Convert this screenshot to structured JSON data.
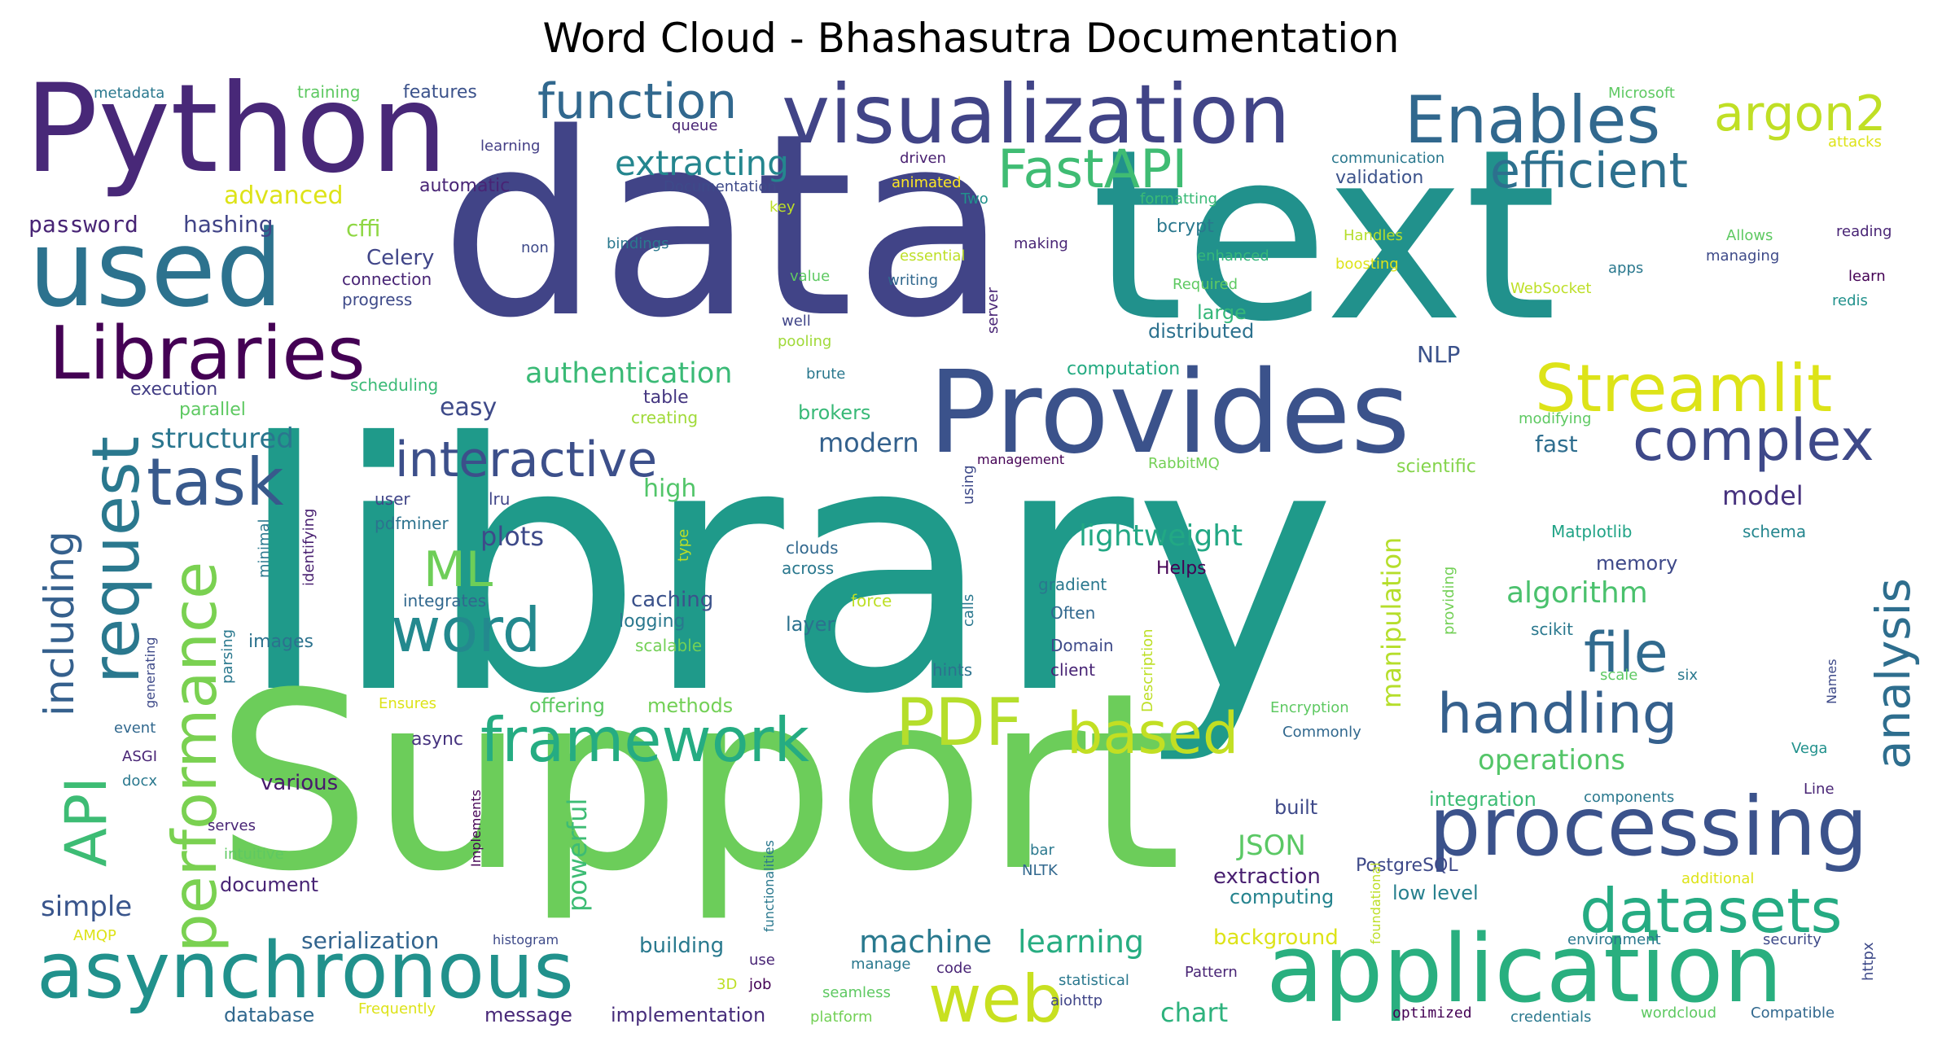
{
  "chart_data": {
    "type": "wordcloud",
    "title": "Word Cloud - Bhashasutra Documentation",
    "words": [
      {
        "text": "library",
        "weight": 100,
        "color": "#1f9a8a"
      },
      {
        "text": "Support",
        "weight": 92,
        "color": "#6ccd5a"
      },
      {
        "text": "data",
        "weight": 88,
        "color": "#414487"
      },
      {
        "text": "text",
        "weight": 86,
        "color": "#21918c"
      },
      {
        "text": "Python",
        "weight": 58,
        "color": "#482878"
      },
      {
        "text": "Provides",
        "weight": 50,
        "color": "#3b528b"
      },
      {
        "text": "used",
        "weight": 48,
        "color": "#2c728e"
      },
      {
        "text": "application",
        "weight": 44,
        "color": "#29af7f"
      },
      {
        "text": "processing",
        "weight": 40,
        "color": "#3b528b"
      },
      {
        "text": "visualization",
        "weight": 38,
        "color": "#414487"
      },
      {
        "text": "asynchronous",
        "weight": 36,
        "color": "#21918c"
      },
      {
        "text": "Libraries",
        "weight": 34,
        "color": "#440154"
      },
      {
        "text": "Enables",
        "weight": 32,
        "color": "#31688e"
      },
      {
        "text": "Streamlit",
        "weight": 31,
        "color": "#dde318"
      },
      {
        "text": "framework",
        "weight": 30,
        "color": "#25ac82"
      },
      {
        "text": "request",
        "weight": 30,
        "color": "#2a788e"
      },
      {
        "text": "PDF",
        "weight": 30,
        "color": "#b5de2b"
      },
      {
        "text": "web",
        "weight": 30,
        "color": "#c8e020"
      },
      {
        "text": "datasets",
        "weight": 29,
        "color": "#25ab82"
      },
      {
        "text": "performance",
        "weight": 29,
        "color": "#7ad151"
      },
      {
        "text": "complex",
        "weight": 28,
        "color": "#3e4989"
      },
      {
        "text": "handling",
        "weight": 27,
        "color": "#35608d"
      },
      {
        "text": "task",
        "weight": 26,
        "color": "#38598c"
      },
      {
        "text": "based",
        "weight": 26,
        "color": "#c2df23"
      },
      {
        "text": "word",
        "weight": 26,
        "color": "#23898e"
      },
      {
        "text": "file",
        "weight": 25,
        "color": "#306a8e"
      },
      {
        "text": "FastAPI",
        "weight": 24,
        "color": "#3fbc73"
      },
      {
        "text": "efficient",
        "weight": 24,
        "color": "#2d708e"
      },
      {
        "text": "argon2",
        "weight": 24,
        "color": "#c0df25"
      },
      {
        "text": "function",
        "weight": 24,
        "color": "#31688e"
      },
      {
        "text": "interactive",
        "weight": 24,
        "color": "#3c4f8a"
      },
      {
        "text": "analysis",
        "weight": 24,
        "color": "#2e6e8e"
      },
      {
        "text": "API",
        "weight": 24,
        "color": "#3dbc74"
      },
      {
        "text": "including",
        "weight": 24,
        "color": "#35608d"
      },
      {
        "text": "ML",
        "weight": 22,
        "color": "#6ece58"
      },
      {
        "text": "extracting",
        "weight": 16,
        "color": "#24868e"
      },
      {
        "text": "authentication",
        "weight": 14,
        "color": "#3aba76"
      },
      {
        "text": "structured",
        "weight": 13,
        "color": "#2a768e"
      },
      {
        "text": "machine",
        "weight": 14,
        "color": "#29798e"
      },
      {
        "text": "learning",
        "weight": 14,
        "color": "#27ad81"
      },
      {
        "text": "lightweight",
        "weight": 14,
        "color": "#22a884"
      },
      {
        "text": "algorithm",
        "weight": 14,
        "color": "#4ac16d"
      },
      {
        "text": "manipulation",
        "weight": 12,
        "color": "#b5de2b"
      },
      {
        "text": "operations",
        "weight": 13,
        "color": "#54c568"
      },
      {
        "text": "JSON",
        "weight": 13,
        "color": "#5ac864"
      },
      {
        "text": "powerful",
        "weight": 13,
        "color": "#3dbc74"
      },
      {
        "text": "serialization",
        "weight": 11,
        "color": "#32648e"
      },
      {
        "text": "chart",
        "weight": 12,
        "color": "#2db27d"
      },
      {
        "text": "simple",
        "weight": 12,
        "color": "#39558c"
      },
      {
        "text": "modern",
        "weight": 12,
        "color": "#34618d"
      },
      {
        "text": "plots",
        "weight": 12,
        "color": "#3e4a89"
      },
      {
        "text": "model",
        "weight": 12,
        "color": "#46327e"
      },
      {
        "text": "easy",
        "weight": 11,
        "color": "#3e4a89"
      },
      {
        "text": "high",
        "weight": 11,
        "color": "#52c569"
      },
      {
        "text": "fast",
        "weight": 11,
        "color": "#2e6d8e"
      },
      {
        "text": "advanced",
        "weight": 10,
        "color": "#dde318"
      },
      {
        "text": "password",
        "weight": 10,
        "color": "#482475"
      },
      {
        "text": "hashing",
        "weight": 10,
        "color": "#414487"
      },
      {
        "text": "cffi",
        "weight": 10,
        "color": "#8fd744"
      },
      {
        "text": "Celery",
        "weight": 10,
        "color": "#404588"
      },
      {
        "text": "NLP",
        "weight": 10,
        "color": "#3b528b"
      },
      {
        "text": "memory",
        "weight": 9,
        "color": "#3e4989"
      },
      {
        "text": "caching",
        "weight": 9,
        "color": "#3b528b"
      },
      {
        "text": "various",
        "weight": 9,
        "color": "#481a6c"
      },
      {
        "text": "document",
        "weight": 9,
        "color": "#482475"
      },
      {
        "text": "building",
        "weight": 9,
        "color": "#29798e"
      },
      {
        "text": "extraction",
        "weight": 9,
        "color": "#481f70"
      },
      {
        "text": "computing",
        "weight": 9,
        "color": "#25838e"
      },
      {
        "text": "integration",
        "weight": 9,
        "color": "#3dbc74"
      },
      {
        "text": "low level",
        "weight": 9,
        "color": "#27808e"
      },
      {
        "text": "background",
        "weight": 9,
        "color": "#dde318"
      },
      {
        "text": "implementation",
        "weight": 8,
        "color": "#472d7b"
      },
      {
        "text": "database",
        "weight": 8,
        "color": "#31688e"
      },
      {
        "text": "message",
        "weight": 8,
        "color": "#482878"
      },
      {
        "text": "offering",
        "weight": 8,
        "color": "#5ec962"
      },
      {
        "text": "methods",
        "weight": 8,
        "color": "#73d056"
      },
      {
        "text": "built",
        "weight": 8,
        "color": "#3e4989"
      },
      {
        "text": "PostgreSQL",
        "weight": 8,
        "color": "#3e4989"
      },
      {
        "text": "integrates",
        "weight": 7,
        "color": "#31688e"
      },
      {
        "text": "features",
        "weight": 7,
        "color": "#3b528b"
      },
      {
        "text": "automatic",
        "weight": 7,
        "color": "#482475"
      },
      {
        "text": "validation",
        "weight": 7,
        "color": "#3b528b"
      },
      {
        "text": "bcrypt",
        "weight": 7,
        "color": "#2a788e"
      },
      {
        "text": "distributed",
        "weight": 7,
        "color": "#2c718e"
      },
      {
        "text": "large",
        "weight": 7,
        "color": "#35b779"
      },
      {
        "text": "computation",
        "weight": 7,
        "color": "#25ab82"
      },
      {
        "text": "brokers",
        "weight": 7,
        "color": "#38b977"
      },
      {
        "text": "scientific",
        "weight": 7,
        "color": "#84d44b"
      },
      {
        "text": "Helps",
        "weight": 7,
        "color": "#440154"
      },
      {
        "text": "layer",
        "weight": 7,
        "color": "#2c718e"
      },
      {
        "text": "logging",
        "weight": 7,
        "color": "#2a788e"
      },
      {
        "text": "async",
        "weight": 7,
        "color": "#46337f"
      },
      {
        "text": "images",
        "weight": 7,
        "color": "#2c728e"
      },
      {
        "text": "parallel",
        "weight": 7,
        "color": "#5ec962"
      },
      {
        "text": "execution",
        "weight": 7,
        "color": "#433e85"
      },
      {
        "text": "connection",
        "weight": 6,
        "color": "#482475"
      },
      {
        "text": "progress",
        "weight": 6,
        "color": "#3e4a89"
      },
      {
        "text": "scheduling",
        "weight": 6,
        "color": "#3aba76"
      },
      {
        "text": "table",
        "weight": 6,
        "color": "#453781"
      },
      {
        "text": "creating",
        "weight": 6,
        "color": "#a0da39"
      },
      {
        "text": "Matplotlib",
        "weight": 6,
        "color": "#20a386"
      },
      {
        "text": "schema",
        "weight": 6,
        "color": "#24868e"
      },
      {
        "text": "scikit",
        "weight": 6,
        "color": "#2a788e"
      },
      {
        "text": "hints",
        "weight": 6,
        "color": "#2c728e"
      },
      {
        "text": "client",
        "weight": 6,
        "color": "#482475"
      },
      {
        "text": "Domain",
        "weight": 6,
        "color": "#3e4a89"
      },
      {
        "text": "Often",
        "weight": 6,
        "color": "#31688e"
      },
      {
        "text": "gradient",
        "weight": 6,
        "color": "#2a788e"
      },
      {
        "text": "force",
        "weight": 6,
        "color": "#bddf26"
      },
      {
        "text": "across",
        "weight": 6,
        "color": "#2a788e"
      },
      {
        "text": "clouds",
        "weight": 6,
        "color": "#31688e"
      },
      {
        "text": "scalable",
        "weight": 6,
        "color": "#73d056"
      },
      {
        "text": "user",
        "weight": 6,
        "color": "#404588"
      },
      {
        "text": "lru",
        "weight": 6,
        "color": "#404588"
      },
      {
        "text": "pdfminer",
        "weight": 6,
        "color": "#2c728e"
      },
      {
        "text": "training",
        "weight": 6,
        "color": "#5ec962"
      },
      {
        "text": "metadata",
        "weight": 5,
        "color": "#2a788e"
      },
      {
        "text": "learning",
        "weight": 5,
        "color": "#433e85"
      },
      {
        "text": "queue",
        "weight": 5,
        "color": "#482475"
      },
      {
        "text": "Documentation",
        "weight": 5,
        "color": "#3e4a89"
      },
      {
        "text": "driven",
        "weight": 5,
        "color": "#481f70"
      },
      {
        "text": "animated",
        "weight": 5,
        "color": "#fde725"
      },
      {
        "text": "Two",
        "weight": 5,
        "color": "#21918c"
      },
      {
        "text": "key",
        "weight": 5,
        "color": "#bddf26"
      },
      {
        "text": "communication",
        "weight": 5,
        "color": "#2a788e"
      },
      {
        "text": "formatting",
        "weight": 5,
        "color": "#3aba76"
      },
      {
        "text": "Microsoft",
        "weight": 5,
        "color": "#5ec962"
      },
      {
        "text": "attacks",
        "weight": 5,
        "color": "#dde318"
      },
      {
        "text": "reading",
        "weight": 5,
        "color": "#482475"
      },
      {
        "text": "Allows",
        "weight": 5,
        "color": "#5ec962"
      },
      {
        "text": "managing",
        "weight": 5,
        "color": "#3e4a89"
      },
      {
        "text": "learn",
        "weight": 5,
        "color": "#440154"
      },
      {
        "text": "redis",
        "weight": 5,
        "color": "#21918c"
      },
      {
        "text": "apps",
        "weight": 5,
        "color": "#2a788e"
      },
      {
        "text": "WebSocket",
        "weight": 5,
        "color": "#bddf26"
      },
      {
        "text": "Handles",
        "weight": 5,
        "color": "#b5de2b"
      },
      {
        "text": "boosting",
        "weight": 5,
        "color": "#dde318"
      },
      {
        "text": "enhanced",
        "weight": 5,
        "color": "#35b779"
      },
      {
        "text": "Required",
        "weight": 5,
        "color": "#5ec962"
      },
      {
        "text": "making",
        "weight": 5,
        "color": "#482475"
      },
      {
        "text": "essential",
        "weight": 5,
        "color": "#bddf26"
      },
      {
        "text": "writing",
        "weight": 5,
        "color": "#31688e"
      },
      {
        "text": "server",
        "weight": 5,
        "color": "#482475"
      },
      {
        "text": "value",
        "weight": 5,
        "color": "#5ec962"
      },
      {
        "text": "well",
        "weight": 5,
        "color": "#404588"
      },
      {
        "text": "pooling",
        "weight": 5,
        "color": "#a0da39"
      },
      {
        "text": "brute",
        "weight": 5,
        "color": "#2a788e"
      },
      {
        "text": "bindings",
        "weight": 5,
        "color": "#2a788e"
      },
      {
        "text": "non",
        "weight": 5,
        "color": "#3e4a89"
      },
      {
        "text": "management",
        "weight": 5,
        "color": "#440154"
      },
      {
        "text": "RabbitMQ",
        "weight": 5,
        "color": "#73d056"
      },
      {
        "text": "using",
        "weight": 5,
        "color": "#3e4a89"
      },
      {
        "text": "modifying",
        "weight": 5,
        "color": "#5ec962"
      },
      {
        "text": "type",
        "weight": 5,
        "color": "#bddf26"
      },
      {
        "text": "identifying",
        "weight": 5,
        "color": "#481f70"
      },
      {
        "text": "minimal",
        "weight": 5,
        "color": "#2a788e"
      },
      {
        "text": "parsing",
        "weight": 5,
        "color": "#2a788e"
      },
      {
        "text": "generating",
        "weight": 5,
        "color": "#3e4a89"
      },
      {
        "text": "event",
        "weight": 5,
        "color": "#31688e"
      },
      {
        "text": "ASGI",
        "weight": 5,
        "color": "#482475"
      },
      {
        "text": "docx",
        "weight": 5,
        "color": "#2a788e"
      },
      {
        "text": "serves",
        "weight": 5,
        "color": "#482475"
      },
      {
        "text": "intuitive",
        "weight": 5,
        "color": "#5ec962"
      },
      {
        "text": "AMQP",
        "weight": 5,
        "color": "#dde318"
      },
      {
        "text": "Frequently",
        "weight": 5,
        "color": "#dde318"
      },
      {
        "text": "Ensures",
        "weight": 5,
        "color": "#dde318"
      },
      {
        "text": "Implements",
        "weight": 5,
        "color": "#440154"
      },
      {
        "text": "functionalities",
        "weight": 5,
        "color": "#2a788e"
      },
      {
        "text": "histogram",
        "weight": 5,
        "color": "#3e4a89"
      },
      {
        "text": "use",
        "weight": 5,
        "color": "#482475"
      },
      {
        "text": "3D",
        "weight": 5,
        "color": "#bddf26"
      },
      {
        "text": "job",
        "weight": 5,
        "color": "#440154"
      },
      {
        "text": "manage",
        "weight": 5,
        "color": "#2a788e"
      },
      {
        "text": "code",
        "weight": 5,
        "color": "#482475"
      },
      {
        "text": "seamless",
        "weight": 5,
        "color": "#5ec962"
      },
      {
        "text": "platform",
        "weight": 5,
        "color": "#73d056"
      },
      {
        "text": "bar",
        "weight": 5,
        "color": "#2a788e"
      },
      {
        "text": "NLTK",
        "weight": 5,
        "color": "#31688e"
      },
      {
        "text": "statistical",
        "weight": 5,
        "color": "#2a788e"
      },
      {
        "text": "aiohttp",
        "weight": 5,
        "color": "#404588"
      },
      {
        "text": "Pattern",
        "weight": 5,
        "color": "#482475"
      },
      {
        "text": "foundational",
        "weight": 5,
        "color": "#bddf26"
      },
      {
        "text": "optimized",
        "weight": 5,
        "color": "#440154"
      },
      {
        "text": "credentials",
        "weight": 5,
        "color": "#2a788e"
      },
      {
        "text": "wordcloud",
        "weight": 5,
        "color": "#5ec962"
      },
      {
        "text": "Compatible",
        "weight": 5,
        "color": "#31688e"
      },
      {
        "text": "additional",
        "weight": 5,
        "color": "#dde318"
      },
      {
        "text": "environment",
        "weight": 5,
        "color": "#2a788e"
      },
      {
        "text": "security",
        "weight": 5,
        "color": "#3e4a89"
      },
      {
        "text": "httpx",
        "weight": 5,
        "color": "#3e4a89"
      },
      {
        "text": "components",
        "weight": 5,
        "color": "#2a788e"
      },
      {
        "text": "Line",
        "weight": 5,
        "color": "#482475"
      },
      {
        "text": "Vega",
        "weight": 5,
        "color": "#21918c"
      },
      {
        "text": "Names",
        "weight": 5,
        "color": "#3e4a89"
      },
      {
        "text": "scale",
        "weight": 5,
        "color": "#5ec962"
      },
      {
        "text": "six",
        "weight": 5,
        "color": "#2a788e"
      },
      {
        "text": "Commonly",
        "weight": 5,
        "color": "#31688e"
      },
      {
        "text": "Encryption",
        "weight": 5,
        "color": "#5ec962"
      },
      {
        "text": "providing",
        "weight": 5,
        "color": "#73d056"
      },
      {
        "text": "Description",
        "weight": 5,
        "color": "#bddf26"
      },
      {
        "text": "calls",
        "weight": 5,
        "color": "#2a788e"
      }
    ]
  }
}
